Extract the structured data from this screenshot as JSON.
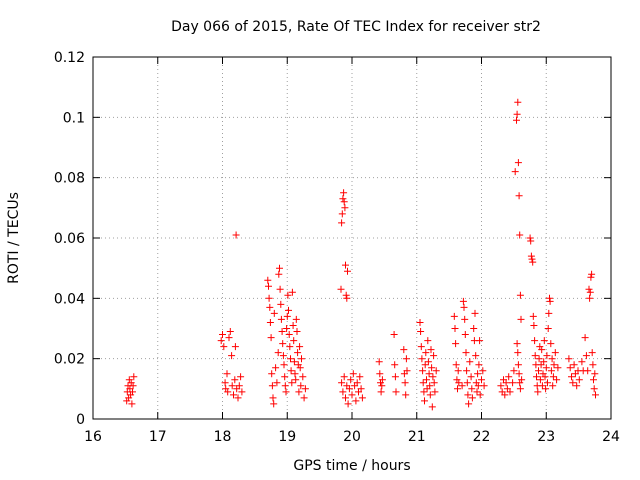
{
  "chart_data": {
    "type": "scatter",
    "title": "Day 066 of 2015, Rate Of TEC Index for receiver str2",
    "xlabel": "GPS time / hours",
    "ylabel": "ROTI / TECUs",
    "xlim": [
      16,
      24
    ],
    "ylim": [
      0,
      0.12
    ],
    "xticks": [
      16,
      17,
      18,
      19,
      20,
      21,
      22,
      23,
      24
    ],
    "xtick_labels": [
      "16",
      "17",
      "18",
      "19",
      "20",
      "21",
      "22",
      "23",
      "24"
    ],
    "yticks": [
      0,
      0.02,
      0.04,
      0.06,
      0.08,
      0.1,
      0.12
    ],
    "ytick_labels": [
      "0",
      "0.02",
      "0.04",
      "0.06",
      "0.08",
      "0.1",
      "0.12"
    ],
    "grid": true,
    "marker": "+",
    "marker_color": "#ff0000",
    "series": [
      {
        "name": "ROTI",
        "points": [
          [
            16.52,
            0.006
          ],
          [
            16.53,
            0.009
          ],
          [
            16.54,
            0.011
          ],
          [
            16.55,
            0.007
          ],
          [
            16.56,
            0.013
          ],
          [
            16.57,
            0.01
          ],
          [
            16.58,
            0.008
          ],
          [
            16.59,
            0.012
          ],
          [
            16.6,
            0.005
          ],
          [
            16.61,
            0.009
          ],
          [
            16.62,
            0.011
          ],
          [
            16.63,
            0.014
          ],
          [
            17.98,
            0.026
          ],
          [
            18.0,
            0.028
          ],
          [
            18.02,
            0.024
          ],
          [
            18.04,
            0.012
          ],
          [
            18.05,
            0.01
          ],
          [
            18.07,
            0.015
          ],
          [
            18.08,
            0.009
          ],
          [
            18.1,
            0.027
          ],
          [
            18.12,
            0.029
          ],
          [
            18.14,
            0.021
          ],
          [
            18.15,
            0.011
          ],
          [
            18.17,
            0.008
          ],
          [
            18.19,
            0.013
          ],
          [
            18.2,
            0.024
          ],
          [
            18.21,
            0.061
          ],
          [
            18.22,
            0.01
          ],
          [
            18.24,
            0.007
          ],
          [
            18.26,
            0.011
          ],
          [
            18.28,
            0.014
          ],
          [
            18.3,
            0.009
          ],
          [
            18.7,
            0.046
          ],
          [
            18.71,
            0.044
          ],
          [
            18.72,
            0.04
          ],
          [
            18.73,
            0.037
          ],
          [
            18.74,
            0.032
          ],
          [
            18.75,
            0.027
          ],
          [
            18.76,
            0.015
          ],
          [
            18.77,
            0.011
          ],
          [
            18.78,
            0.007
          ],
          [
            18.79,
            0.005
          ],
          [
            18.8,
            0.035
          ],
          [
            18.82,
            0.017
          ],
          [
            18.84,
            0.012
          ],
          [
            18.86,
            0.022
          ],
          [
            18.87,
            0.048
          ],
          [
            18.88,
            0.05
          ],
          [
            18.89,
            0.043
          ],
          [
            18.9,
            0.038
          ],
          [
            18.91,
            0.033
          ],
          [
            18.92,
            0.029
          ],
          [
            18.93,
            0.025
          ],
          [
            18.94,
            0.021
          ],
          [
            18.95,
            0.018
          ],
          [
            18.96,
            0.014
          ],
          [
            18.97,
            0.011
          ],
          [
            18.98,
            0.009
          ],
          [
            18.99,
            0.03
          ],
          [
            19.0,
            0.034
          ],
          [
            19.01,
            0.041
          ],
          [
            19.02,
            0.036
          ],
          [
            19.03,
            0.028
          ],
          [
            19.04,
            0.024
          ],
          [
            19.05,
            0.02
          ],
          [
            19.06,
            0.016
          ],
          [
            19.07,
            0.012
          ],
          [
            19.08,
            0.042
          ],
          [
            19.09,
            0.031
          ],
          [
            19.1,
            0.026
          ],
          [
            19.11,
            0.019
          ],
          [
            19.12,
            0.015
          ],
          [
            19.13,
            0.013
          ],
          [
            19.14,
            0.033
          ],
          [
            19.15,
            0.029
          ],
          [
            19.16,
            0.022
          ],
          [
            19.17,
            0.018
          ],
          [
            19.18,
            0.009
          ],
          [
            19.19,
            0.024
          ],
          [
            19.2,
            0.017
          ],
          [
            19.21,
            0.011
          ],
          [
            19.22,
            0.02
          ],
          [
            19.24,
            0.014
          ],
          [
            19.26,
            0.007
          ],
          [
            19.28,
            0.01
          ],
          [
            19.83,
            0.043
          ],
          [
            19.84,
            0.065
          ],
          [
            19.85,
            0.068
          ],
          [
            19.86,
            0.073
          ],
          [
            19.87,
            0.075
          ],
          [
            19.88,
            0.072
          ],
          [
            19.89,
            0.07
          ],
          [
            19.9,
            0.051
          ],
          [
            19.91,
            0.041
          ],
          [
            19.92,
            0.04
          ],
          [
            19.93,
            0.049
          ],
          [
            19.84,
            0.012
          ],
          [
            19.86,
            0.009
          ],
          [
            19.88,
            0.014
          ],
          [
            19.9,
            0.007
          ],
          [
            19.92,
            0.011
          ],
          [
            19.94,
            0.005
          ],
          [
            19.96,
            0.01
          ],
          [
            19.98,
            0.013
          ],
          [
            20.0,
            0.008
          ],
          [
            20.02,
            0.015
          ],
          [
            20.04,
            0.011
          ],
          [
            20.06,
            0.006
          ],
          [
            20.08,
            0.012
          ],
          [
            20.1,
            0.009
          ],
          [
            20.12,
            0.014
          ],
          [
            20.14,
            0.01
          ],
          [
            20.16,
            0.007
          ],
          [
            20.42,
            0.019
          ],
          [
            20.43,
            0.015
          ],
          [
            20.44,
            0.012
          ],
          [
            20.45,
            0.009
          ],
          [
            20.46,
            0.011
          ],
          [
            20.47,
            0.013
          ],
          [
            20.65,
            0.028
          ],
          [
            20.66,
            0.018
          ],
          [
            20.67,
            0.014
          ],
          [
            20.68,
            0.009
          ],
          [
            20.8,
            0.023
          ],
          [
            20.81,
            0.015
          ],
          [
            20.82,
            0.012
          ],
          [
            20.83,
            0.008
          ],
          [
            20.84,
            0.02
          ],
          [
            20.85,
            0.016
          ],
          [
            21.05,
            0.032
          ],
          [
            21.06,
            0.029
          ],
          [
            21.07,
            0.024
          ],
          [
            21.08,
            0.02
          ],
          [
            21.09,
            0.016
          ],
          [
            21.1,
            0.012
          ],
          [
            21.11,
            0.009
          ],
          [
            21.12,
            0.006
          ],
          [
            21.13,
            0.018
          ],
          [
            21.14,
            0.022
          ],
          [
            21.15,
            0.013
          ],
          [
            21.16,
            0.01
          ],
          [
            21.17,
            0.026
          ],
          [
            21.18,
            0.019
          ],
          [
            21.19,
            0.015
          ],
          [
            21.2,
            0.011
          ],
          [
            21.21,
            0.008
          ],
          [
            21.22,
            0.023
          ],
          [
            21.23,
            0.017
          ],
          [
            21.24,
            0.004
          ],
          [
            21.25,
            0.014
          ],
          [
            21.26,
            0.021
          ],
          [
            21.27,
            0.012
          ],
          [
            21.28,
            0.009
          ],
          [
            21.3,
            0.016
          ],
          [
            21.58,
            0.034
          ],
          [
            21.59,
            0.03
          ],
          [
            21.6,
            0.025
          ],
          [
            21.61,
            0.018
          ],
          [
            21.62,
            0.013
          ],
          [
            21.63,
            0.01
          ],
          [
            21.64,
            0.016
          ],
          [
            21.65,
            0.012
          ],
          [
            21.7,
            0.011
          ],
          [
            21.72,
            0.039
          ],
          [
            21.73,
            0.037
          ],
          [
            21.74,
            0.033
          ],
          [
            21.75,
            0.028
          ],
          [
            21.76,
            0.022
          ],
          [
            21.77,
            0.016
          ],
          [
            21.78,
            0.012
          ],
          [
            21.79,
            0.008
          ],
          [
            21.8,
            0.005
          ],
          [
            21.82,
            0.019
          ],
          [
            21.84,
            0.014
          ],
          [
            21.85,
            0.01
          ],
          [
            21.86,
            0.007
          ],
          [
            21.88,
            0.03
          ],
          [
            21.89,
            0.026
          ],
          [
            21.9,
            0.035
          ],
          [
            21.91,
            0.021
          ],
          [
            21.92,
            0.012
          ],
          [
            21.93,
            0.009
          ],
          [
            21.94,
            0.015
          ],
          [
            21.95,
            0.011
          ],
          [
            21.96,
            0.018
          ],
          [
            21.97,
            0.026
          ],
          [
            21.98,
            0.008
          ],
          [
            22.0,
            0.013
          ],
          [
            22.02,
            0.016
          ],
          [
            22.04,
            0.011
          ],
          [
            22.3,
            0.011
          ],
          [
            22.32,
            0.009
          ],
          [
            22.34,
            0.013
          ],
          [
            22.36,
            0.008
          ],
          [
            22.38,
            0.012
          ],
          [
            22.4,
            0.01
          ],
          [
            22.42,
            0.014
          ],
          [
            22.44,
            0.009
          ],
          [
            22.48,
            0.012
          ],
          [
            22.5,
            0.016
          ],
          [
            22.52,
            0.082
          ],
          [
            22.54,
            0.099
          ],
          [
            22.55,
            0.101
          ],
          [
            22.56,
            0.105
          ],
          [
            22.57,
            0.085
          ],
          [
            22.58,
            0.074
          ],
          [
            22.59,
            0.061
          ],
          [
            22.6,
            0.041
          ],
          [
            22.61,
            0.033
          ],
          [
            22.55,
            0.025
          ],
          [
            22.56,
            0.022
          ],
          [
            22.57,
            0.018
          ],
          [
            22.58,
            0.015
          ],
          [
            22.59,
            0.012
          ],
          [
            22.6,
            0.01
          ],
          [
            22.62,
            0.013
          ],
          [
            22.75,
            0.06
          ],
          [
            22.76,
            0.059
          ],
          [
            22.77,
            0.054
          ],
          [
            22.78,
            0.053
          ],
          [
            22.79,
            0.052
          ],
          [
            22.8,
            0.034
          ],
          [
            22.81,
            0.031
          ],
          [
            22.82,
            0.026
          ],
          [
            22.83,
            0.021
          ],
          [
            22.84,
            0.018
          ],
          [
            22.85,
            0.014
          ],
          [
            22.86,
            0.011
          ],
          [
            22.87,
            0.009
          ],
          [
            22.88,
            0.016
          ],
          [
            22.89,
            0.02
          ],
          [
            22.9,
            0.024
          ],
          [
            22.91,
            0.013
          ],
          [
            22.92,
            0.018
          ],
          [
            22.93,
            0.023
          ],
          [
            22.94,
            0.011
          ],
          [
            22.95,
            0.015
          ],
          [
            22.96,
            0.019
          ],
          [
            22.97,
            0.026
          ],
          [
            22.98,
            0.014
          ],
          [
            22.99,
            0.01
          ],
          [
            23.0,
            0.017
          ],
          [
            23.01,
            0.021
          ],
          [
            23.02,
            0.012
          ],
          [
            23.03,
            0.03
          ],
          [
            23.04,
            0.035
          ],
          [
            23.05,
            0.04
          ],
          [
            23.06,
            0.039
          ],
          [
            23.07,
            0.025
          ],
          [
            23.08,
            0.016
          ],
          [
            23.09,
            0.02
          ],
          [
            23.1,
            0.011
          ],
          [
            23.11,
            0.014
          ],
          [
            23.12,
            0.018
          ],
          [
            23.14,
            0.022
          ],
          [
            23.16,
            0.013
          ],
          [
            23.18,
            0.017
          ],
          [
            23.35,
            0.02
          ],
          [
            23.37,
            0.017
          ],
          [
            23.39,
            0.014
          ],
          [
            23.41,
            0.012
          ],
          [
            23.43,
            0.018
          ],
          [
            23.45,
            0.015
          ],
          [
            23.47,
            0.011
          ],
          [
            23.49,
            0.016
          ],
          [
            23.51,
            0.013
          ],
          [
            23.55,
            0.019
          ],
          [
            23.57,
            0.016
          ],
          [
            23.6,
            0.027
          ],
          [
            23.62,
            0.021
          ],
          [
            23.64,
            0.016
          ],
          [
            23.66,
            0.043
          ],
          [
            23.67,
            0.04
          ],
          [
            23.68,
            0.042
          ],
          [
            23.69,
            0.047
          ],
          [
            23.7,
            0.048
          ],
          [
            23.71,
            0.022
          ],
          [
            23.72,
            0.018
          ],
          [
            23.73,
            0.013
          ],
          [
            23.74,
            0.01
          ],
          [
            23.75,
            0.015
          ],
          [
            23.76,
            0.008
          ]
        ]
      }
    ]
  }
}
